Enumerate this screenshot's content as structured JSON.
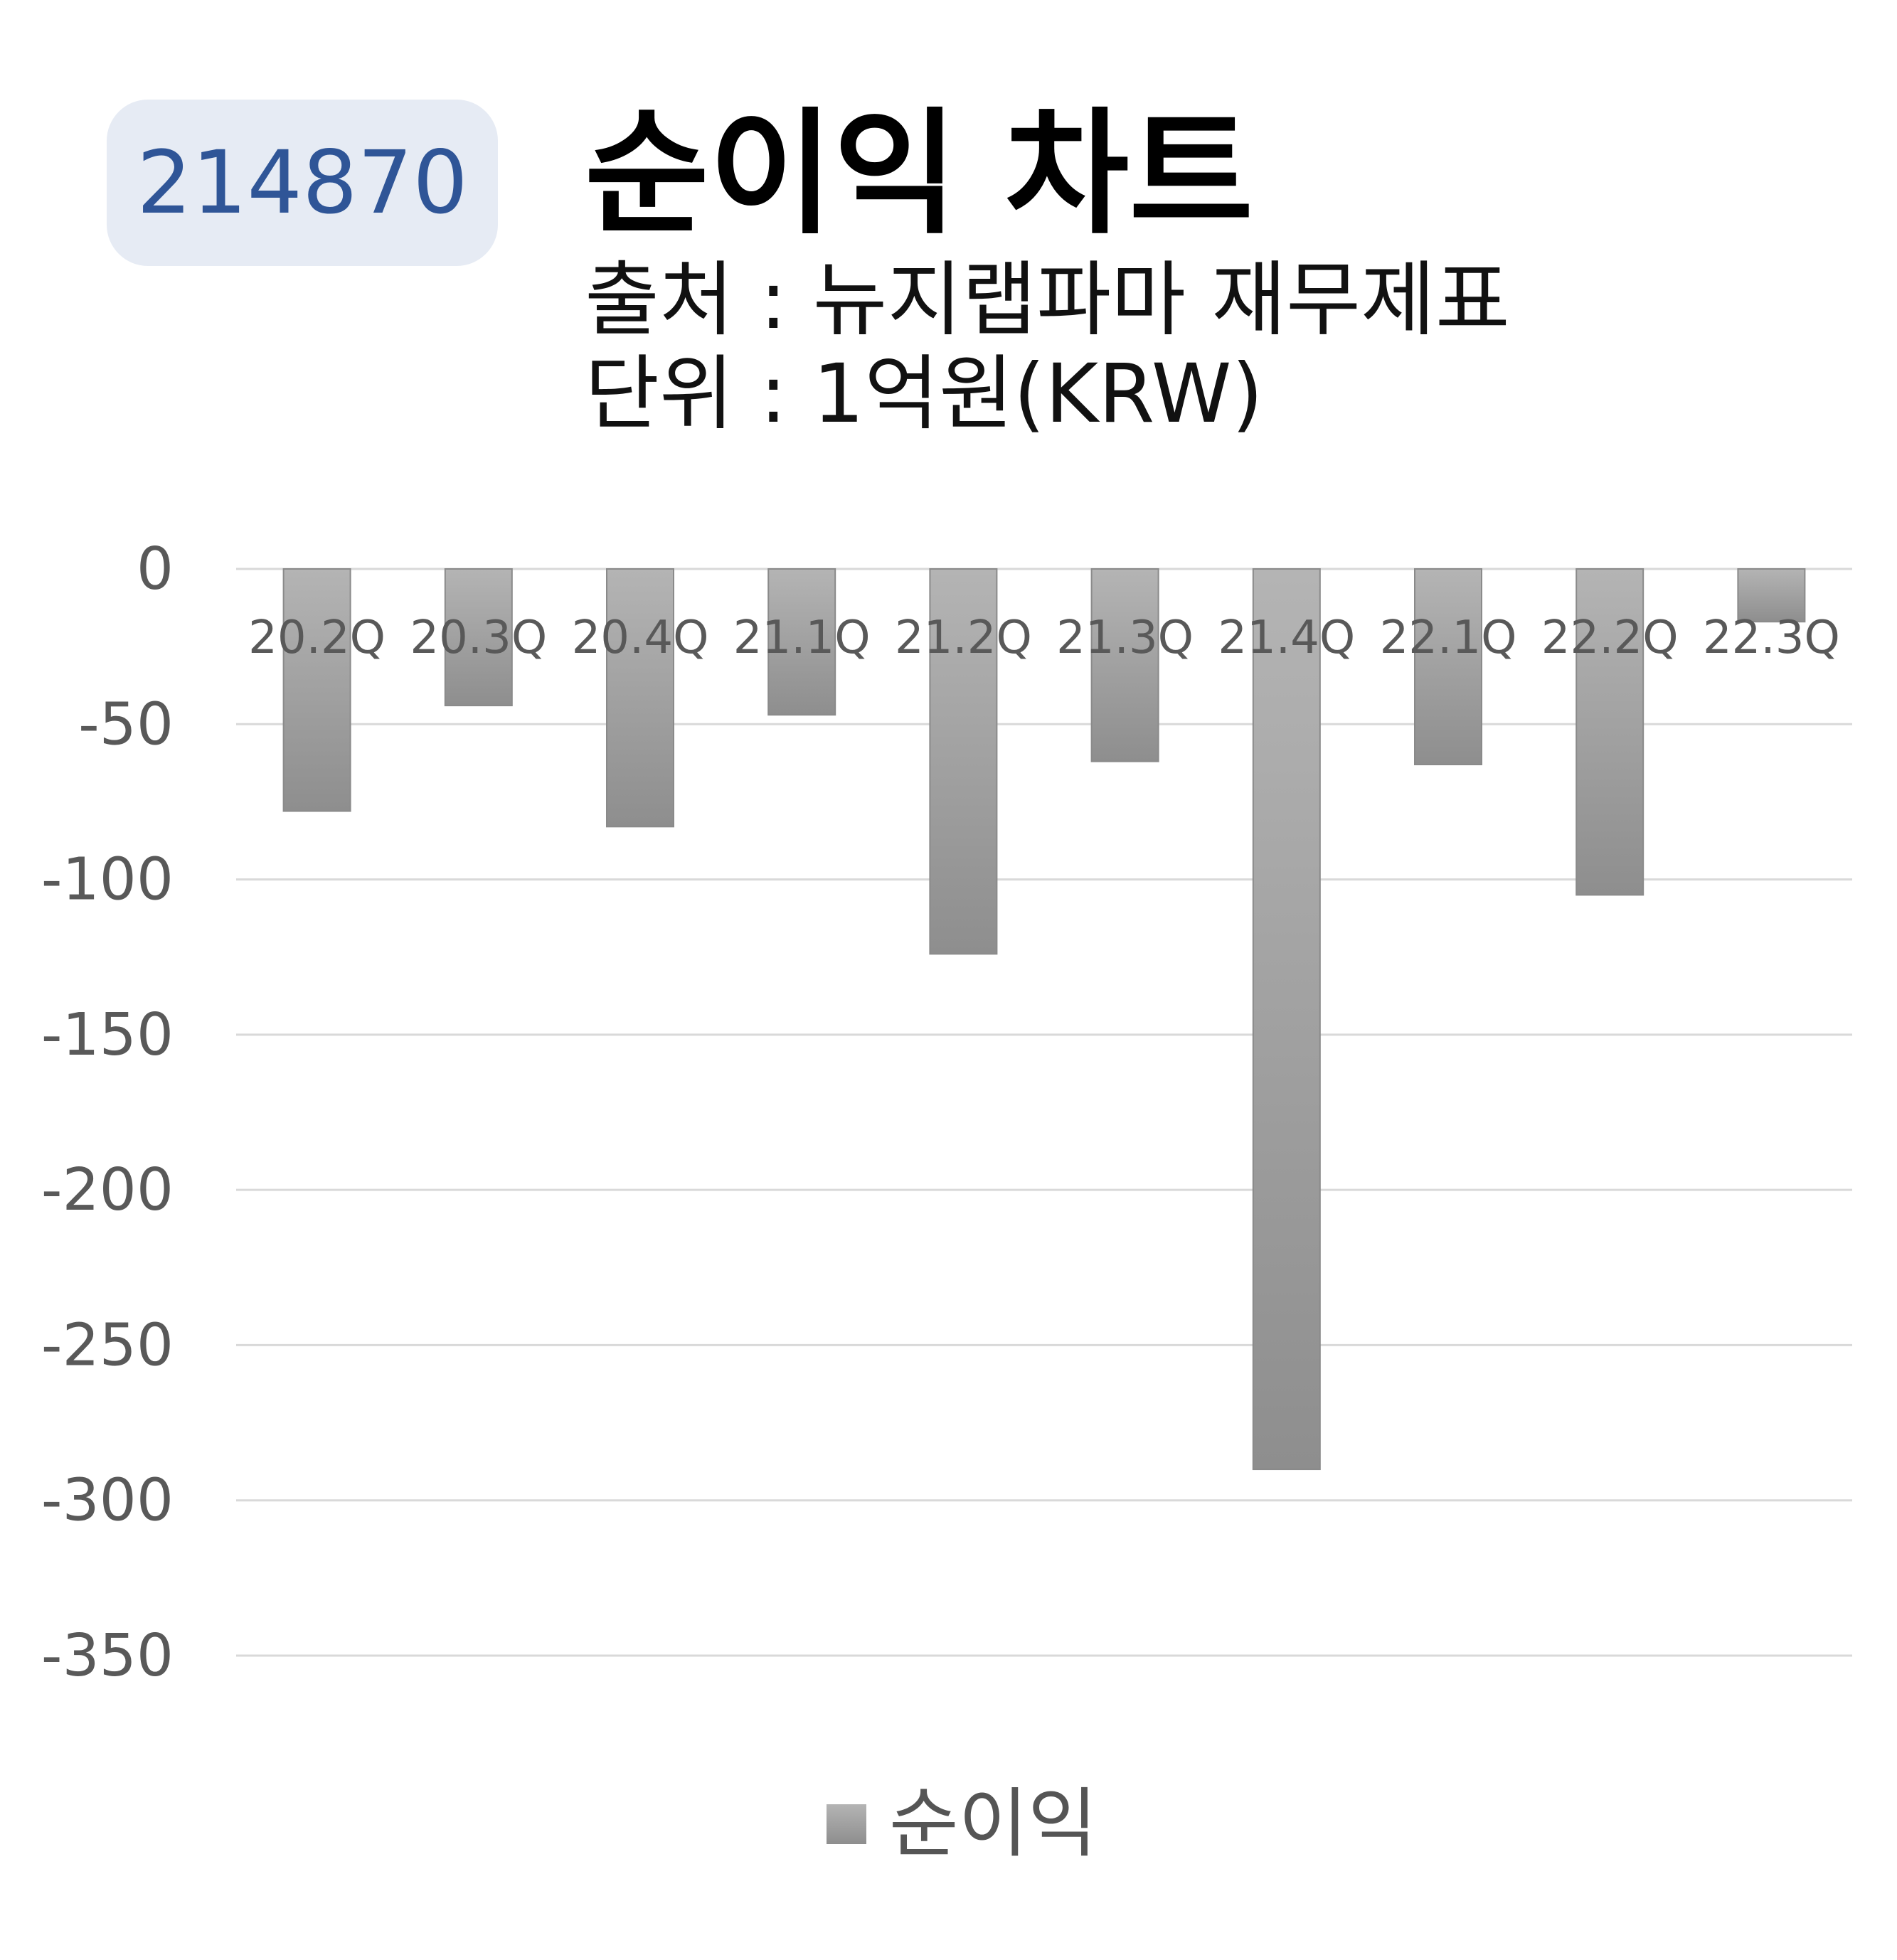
{
  "code_badge": "214870",
  "subtitle_lines": [
    "출처 : 뉴지랩파마 재무제표",
    "단위 : 1억원(KRW)"
  ],
  "colors": {
    "badge_bg": "#e6ebf4",
    "badge_text": "#2f5597",
    "bar_top": "#b4b4b4",
    "bar_bottom": "#8e8e8e",
    "grid": "#d9d9d9",
    "axis_text": "#595959"
  },
  "chart_data": {
    "type": "bar",
    "title": "순이익 차트",
    "categories": [
      "20.2Q",
      "20.3Q",
      "20.4Q",
      "21.1Q",
      "21.2Q",
      "21.3Q",
      "21.4Q",
      "22.1Q",
      "22.2Q",
      "22.3Q"
    ],
    "series": [
      {
        "name": "순이익",
        "values": [
          -78,
          -44,
          -83,
          -47,
          -124,
          -62,
          -290,
          -63,
          -105,
          -17
        ]
      }
    ],
    "yticks": [
      "0",
      "-50",
      "-100",
      "-150",
      "-200",
      "-250",
      "-300",
      "-350"
    ],
    "ylim": [
      -350,
      0
    ],
    "grid": true,
    "legend": "bottom"
  }
}
